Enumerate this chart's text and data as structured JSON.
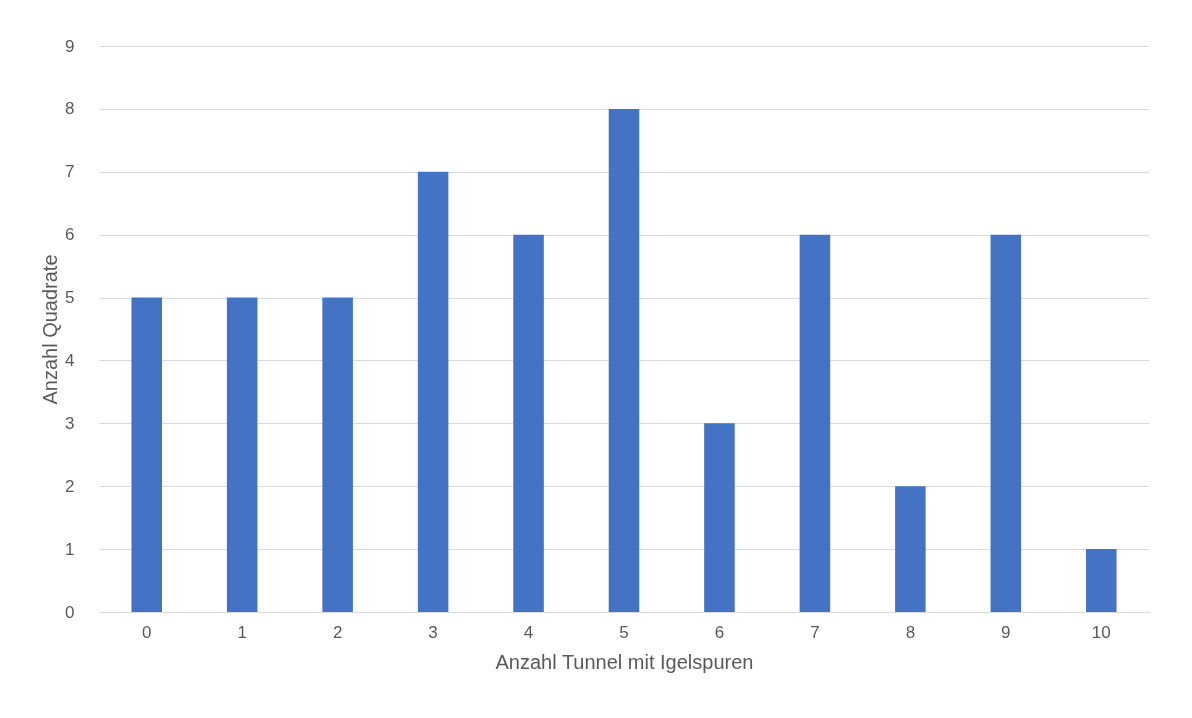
{
  "chart_data": {
    "type": "bar",
    "xlabel": "Anzahl Tunnel mit Igelspuren",
    "ylabel": "Anzahl Quadrate",
    "categories": [
      "0",
      "1",
      "2",
      "3",
      "4",
      "5",
      "6",
      "7",
      "8",
      "9",
      "10"
    ],
    "values": [
      5,
      5,
      5,
      7,
      6,
      8,
      3,
      6,
      2,
      6,
      1
    ],
    "color": "#4472c4",
    "ylim": [
      0,
      9
    ],
    "yticks": [
      0,
      1,
      2,
      3,
      4,
      5,
      6,
      7,
      8,
      9
    ],
    "grid": "y"
  }
}
